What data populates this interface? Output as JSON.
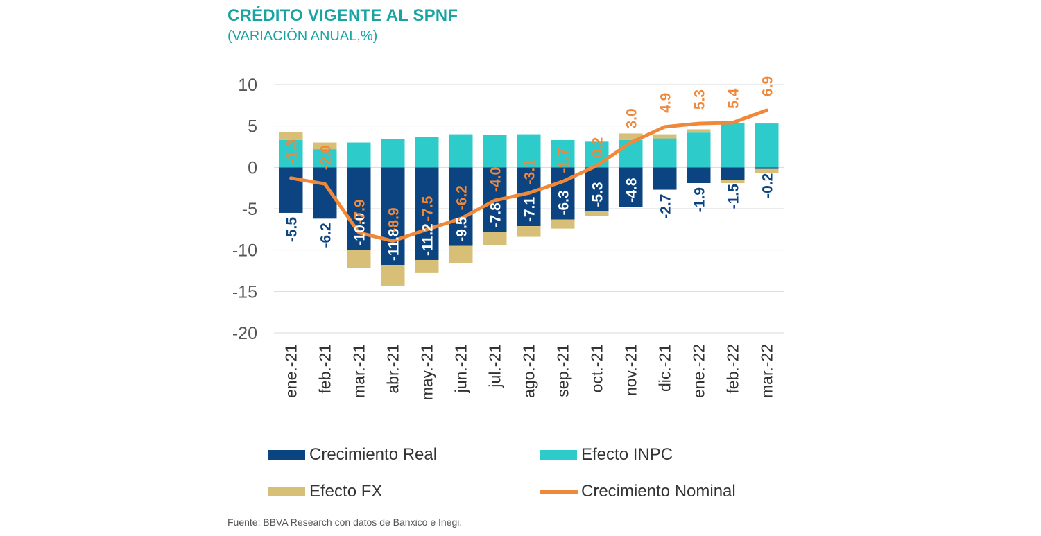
{
  "colors": {
    "real": "#0b4480",
    "inpc": "#2ecbcb",
    "fx": "#d8bf78",
    "nominal": "#f0883a",
    "title": "#1aa3a3",
    "grid": "#d9d9d9"
  },
  "chart_data": {
    "type": "bar",
    "title": "CRÉDITO VIGENTE AL SPNF",
    "subtitle": "(VARIACIÓN ANUAL,%)",
    "categories": [
      "ene.-21",
      "feb.-21",
      "mar.-21",
      "abr.-21",
      "may.-21",
      "jun.-21",
      "jul.-21",
      "ago.-21",
      "sep.-21",
      "oct.-21",
      "nov.-21",
      "dic.-21",
      "ene.-22",
      "feb.-22",
      "mar.-22"
    ],
    "ylim": [
      -20,
      10
    ],
    "yticks": [
      10,
      5,
      0,
      -5,
      -10,
      -15,
      -20
    ],
    "grid": true,
    "stacked": true,
    "series": [
      {
        "name": "Crecimiento Real",
        "kind": "bar",
        "values": [
          -5.5,
          -6.2,
          -10.0,
          -11.8,
          -11.2,
          -9.5,
          -7.8,
          -7.1,
          -6.3,
          -5.3,
          -4.8,
          -2.7,
          -1.9,
          -1.5,
          -0.2
        ],
        "labels": [
          "-5.5",
          "-6.2",
          "-10.0",
          "-11.8",
          "-11.2",
          "-9.5",
          "-7.8",
          "-7.1",
          "-6.3",
          "-5.3",
          "-4.8",
          "-2.7",
          "-1.9",
          "-1.5",
          "-0.2"
        ]
      },
      {
        "name": "Efecto INPC",
        "kind": "bar",
        "values": [
          3.3,
          2.2,
          3.0,
          3.4,
          3.7,
          4.0,
          3.9,
          4.0,
          3.3,
          3.1,
          3.3,
          3.5,
          4.2,
          5.4,
          5.3
        ]
      },
      {
        "name": "Efecto FX",
        "kind": "bar",
        "values": [
          1.0,
          0.8,
          -2.2,
          -2.5,
          -1.5,
          -2.1,
          -1.6,
          -1.3,
          -1.1,
          -0.6,
          0.8,
          0.5,
          0.4,
          -0.4,
          -0.5
        ]
      },
      {
        "name": "Crecimiento Nominal",
        "kind": "line",
        "values": [
          -1.3,
          -2.0,
          -7.9,
          -8.9,
          -7.5,
          -6.2,
          -4.0,
          -3.1,
          -1.7,
          0.2,
          3.0,
          4.9,
          5.3,
          5.4,
          6.9
        ],
        "labels": [
          "-1.3",
          "-2.0",
          "-7.9",
          "-8.9",
          "-7.5",
          "-6.2",
          "-4.0",
          "-3.1",
          "-1.7",
          "0.2",
          "3.0",
          "4.9",
          "5.3",
          "5.4",
          "6.9"
        ]
      }
    ],
    "legend": [
      "Crecimiento Real",
      "Efecto INPC",
      "Efecto FX",
      "Crecimiento Nominal"
    ],
    "legend_position": "bottom"
  },
  "source": "Fuente: BBVA Research con datos de Banxico e Inegi."
}
